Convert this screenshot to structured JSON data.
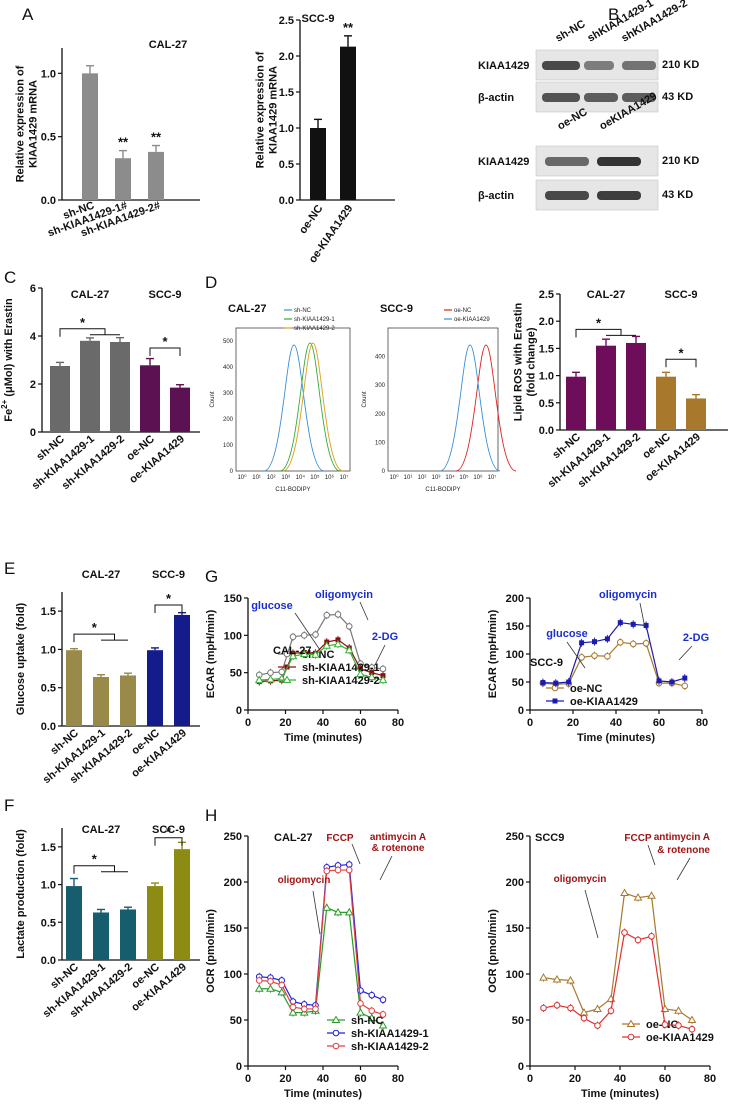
{
  "panels": {
    "A": {
      "label": "A"
    },
    "B": {
      "label": "B"
    },
    "C": {
      "label": "C"
    },
    "D": {
      "label": "D"
    },
    "E": {
      "label": "E"
    },
    "F": {
      "label": "F"
    },
    "G": {
      "label": "G"
    },
    "H": {
      "label": "H"
    }
  },
  "colors": {
    "gray": "#8c8c8c",
    "black": "#111111",
    "darkgray": "#6a6a6a",
    "purple": "#5c1152",
    "magenta": "#6e0e5a",
    "gold": "#a8782c",
    "olivegold": "#9a8a4a",
    "navy": "#141c8c",
    "teal": "#165e6e",
    "olive": "#8c8c14",
    "blue_ann": "#1b2fd0",
    "red_ann": "#a01414"
  },
  "chart_data": [
    {
      "id": "A-left",
      "type": "bar",
      "title": "CAL-27",
      "ylabel": "Relative expression of KIAA1429 mRNA",
      "ylim": [
        0,
        1.2
      ],
      "yticks": [
        "0.0",
        "0.5",
        "1.0"
      ],
      "categories": [
        "sh-NC",
        "sh-KIAA1429-1#",
        "sh-KIAA1429-2#"
      ],
      "values": [
        1.0,
        0.33,
        0.38
      ],
      "errors": [
        0.06,
        0.06,
        0.05
      ],
      "colors": [
        "#8c8c8c",
        "#8c8c8c",
        "#8c8c8c"
      ],
      "annotations": [
        "",
        "**",
        "**"
      ]
    },
    {
      "id": "A-right",
      "type": "bar",
      "title": "SCC-9",
      "ylabel": "Relative expression of KIAA1429 mRNA",
      "ylim": [
        0,
        2.5
      ],
      "yticks": [
        "0.0",
        "0.5",
        "1.0",
        "1.5",
        "2.0",
        "2.5"
      ],
      "categories": [
        "oe-NC",
        "oe-KIAA1429"
      ],
      "values": [
        1.0,
        2.13
      ],
      "errors": [
        0.12,
        0.15
      ],
      "colors": [
        "#111111",
        "#111111"
      ],
      "annotations": [
        "",
        "**"
      ]
    },
    {
      "id": "C",
      "type": "bar",
      "ylabel": "Fe2+ (μMol) with Erastin",
      "ylim": [
        0,
        6
      ],
      "yticks": [
        "0",
        "2",
        "4",
        "6"
      ],
      "group_titles": [
        "CAL-27",
        "SCC-9"
      ],
      "categories": [
        "sh-NC",
        "sh-KIAA1429-1",
        "sh-KIAA1429-2",
        "oe-NC",
        "oe-KIAA1429"
      ],
      "values": [
        2.75,
        3.8,
        3.75,
        2.78,
        1.85
      ],
      "errors": [
        0.15,
        0.12,
        0.18,
        0.28,
        0.12
      ],
      "colors": [
        "#6a6a6a",
        "#6a6a6a",
        "#6a6a6a",
        "#5c1152",
        "#5c1152"
      ],
      "significance": [
        "*",
        "*"
      ]
    },
    {
      "id": "D-flow",
      "type": "line",
      "xlabel": "C11-BODIPY",
      "ylabel": "Count",
      "histograms": [
        {
          "title": "CAL-27",
          "yticks": [
            "0",
            "100",
            "200",
            "300",
            "400",
            "500"
          ],
          "xticks": [
            "10⁰",
            "10¹",
            "10²",
            "10³",
            "10⁴",
            "10⁵",
            "10⁶",
            "10⁷"
          ],
          "legend": [
            "sh-NC",
            "sh-KIAA1429-1",
            "sh-KIAA1429-2"
          ],
          "series_colors": [
            "#3a8fd6",
            "#3aa83a",
            "#d8a01a"
          ]
        },
        {
          "title": "SCC-9",
          "yticks": [
            "0",
            "100",
            "200",
            "300",
            "400"
          ],
          "xticks": [
            "10⁰",
            "10¹",
            "10²",
            "10³",
            "10⁴",
            "10⁵",
            "10⁶",
            "10⁷"
          ],
          "legend": [
            "oe-NC",
            "oe-KIAA1429"
          ],
          "series_colors": [
            "#e02020",
            "#3a8fd6"
          ]
        }
      ]
    },
    {
      "id": "D-bar",
      "type": "bar",
      "ylabel": "Lipid ROS with Erastin (fold change)",
      "ylim": [
        0,
        2.5
      ],
      "yticks": [
        "0.0",
        "0.5",
        "1.0",
        "1.5",
        "2.0",
        "2.5"
      ],
      "group_titles": [
        "CAL-27",
        "SCC-9"
      ],
      "categories": [
        "sh-NC",
        "sh-KIAA1429-1",
        "sh-KIAA1429-2",
        "oe-NC",
        "oe-KIAA1429"
      ],
      "values": [
        0.98,
        1.55,
        1.6,
        0.98,
        0.58
      ],
      "errors": [
        0.08,
        0.12,
        0.12,
        0.08,
        0.07
      ],
      "colors": [
        "#6e0e5a",
        "#6e0e5a",
        "#6e0e5a",
        "#a8782c",
        "#a8782c"
      ],
      "significance": [
        "*",
        "*"
      ]
    },
    {
      "id": "E",
      "type": "bar",
      "ylabel": "Glucose uptake (fold)",
      "ylim": [
        0,
        1.75
      ],
      "yticks": [
        "0.0",
        "0.5",
        "1.0",
        "1.5"
      ],
      "group_titles": [
        "CAL-27",
        "SCC-9"
      ],
      "categories": [
        "sh-NC",
        "sh-KIAA1429-1",
        "sh-KIAA1429-2",
        "oe-NC",
        "oe-KIAA1429"
      ],
      "values": [
        0.99,
        0.64,
        0.66,
        0.99,
        1.45
      ],
      "errors": [
        0.02,
        0.03,
        0.03,
        0.03,
        0.03
      ],
      "colors": [
        "#9a8a4a",
        "#9a8a4a",
        "#9a8a4a",
        "#141c8c",
        "#141c8c"
      ],
      "significance": [
        "*",
        "*"
      ]
    },
    {
      "id": "F",
      "type": "bar",
      "ylabel": "Lactate production (fold)",
      "ylim": [
        0,
        1.75
      ],
      "yticks": [
        "0.0",
        "0.5",
        "1.0",
        "1.5"
      ],
      "group_titles": [
        "CAL-27",
        "SCC-9"
      ],
      "categories": [
        "sh-NC",
        "sh-KIAA1429-1",
        "sh-KIAA1429-2",
        "oe-NC",
        "oe-KIAA1429"
      ],
      "values": [
        0.98,
        0.63,
        0.67,
        0.98,
        1.47
      ],
      "errors": [
        0.1,
        0.04,
        0.03,
        0.04,
        0.09
      ],
      "colors": [
        "#165e6e",
        "#165e6e",
        "#165e6e",
        "#8c8c14",
        "#8c8c14"
      ],
      "significance": [
        "*",
        "*"
      ]
    },
    {
      "id": "G-left",
      "type": "line",
      "title": "CAL-27",
      "xlabel": "Time (minutes)",
      "ylabel": "ECAR (mpH/min)",
      "xlim": [
        0,
        80
      ],
      "ylim": [
        0,
        150
      ],
      "xticks": [
        "0",
        "20",
        "40",
        "60",
        "80"
      ],
      "yticks": [
        "0",
        "50",
        "100",
        "150"
      ],
      "x": [
        6,
        12,
        18,
        24,
        30,
        36,
        42,
        48,
        54,
        60,
        66,
        72
      ],
      "series": [
        {
          "name": "sh-NC",
          "color": "#777777",
          "marker": "o",
          "values": [
            47,
            50,
            51,
            98,
            100,
            101,
            127,
            128,
            112,
            62,
            57,
            55
          ]
        },
        {
          "name": "sh-KIAA1429-1",
          "color": "#8b1010",
          "marker": "s",
          "values": [
            38,
            39,
            40,
            76,
            77,
            76,
            91,
            94,
            83,
            55,
            50,
            46
          ]
        },
        {
          "name": "sh-KIAA1429-2",
          "color": "#3ab03a",
          "marker": "^",
          "values": [
            40,
            41,
            42,
            72,
            75,
            74,
            86,
            88,
            80,
            48,
            44,
            40
          ]
        }
      ],
      "annotations": [
        {
          "text": "glucose",
          "color": "#1b2fd0"
        },
        {
          "text": "oligomycin",
          "color": "#1b2fd0"
        },
        {
          "text": "2-DG",
          "color": "#1b2fd0"
        }
      ]
    },
    {
      "id": "G-right",
      "type": "line",
      "title": "SCC-9",
      "xlabel": "Time (minutes)",
      "ylabel": "ECAR (mpH/min)",
      "xlim": [
        0,
        80
      ],
      "ylim": [
        0,
        200
      ],
      "xticks": [
        "0",
        "20",
        "40",
        "60",
        "80"
      ],
      "yticks": [
        "0",
        "50",
        "100",
        "150",
        "200"
      ],
      "x": [
        6,
        12,
        18,
        24,
        30,
        36,
        42,
        48,
        54,
        60,
        66,
        72
      ],
      "series": [
        {
          "name": "oe-NC",
          "color": "#a8782c",
          "marker": "o",
          "values": [
            48,
            46,
            47,
            94,
            97,
            96,
            121,
            118,
            119,
            48,
            48,
            43
          ]
        },
        {
          "name": "oe-KIAA1429",
          "color": "#1b1bb0",
          "marker": "s",
          "values": [
            49,
            48,
            50,
            120,
            122,
            127,
            156,
            153,
            151,
            52,
            50,
            57
          ]
        }
      ],
      "annotations": [
        {
          "text": "glucose",
          "color": "#1b2fd0"
        },
        {
          "text": "oligomycin",
          "color": "#1b2fd0"
        },
        {
          "text": "2-DG",
          "color": "#1b2fd0"
        }
      ]
    },
    {
      "id": "H-left",
      "type": "line",
      "title": "CAL-27",
      "xlabel": "Time (minutes)",
      "ylabel": "OCR (pmol/min)",
      "xlim": [
        0,
        80
      ],
      "ylim": [
        0,
        250
      ],
      "xticks": [
        "0",
        "20",
        "40",
        "60",
        "80"
      ],
      "yticks": [
        "0",
        "50",
        "100",
        "150",
        "200",
        "250"
      ],
      "x": [
        6,
        12,
        18,
        24,
        30,
        36,
        42,
        48,
        54,
        60,
        66,
        72
      ],
      "series": [
        {
          "name": "sh-NC",
          "color": "#2a9a2a",
          "marker": "^",
          "values": [
            84,
            84,
            80,
            58,
            58,
            60,
            172,
            167,
            167,
            58,
            52,
            44
          ]
        },
        {
          "name": "sh-KIAA1429-1",
          "color": "#2020d8",
          "marker": "o",
          "values": [
            97,
            96,
            93,
            70,
            67,
            66,
            216,
            218,
            219,
            82,
            77,
            72
          ]
        },
        {
          "name": "sh-KIAA1429-2",
          "color": "#e04040",
          "marker": "o",
          "values": [
            93,
            92,
            88,
            64,
            62,
            62,
            212,
            213,
            213,
            68,
            60,
            56
          ]
        }
      ],
      "annotations": [
        {
          "text": "oligomycin",
          "color": "#a01414"
        },
        {
          "text": "FCCP",
          "color": "#a01414"
        },
        {
          "text": "antimycin A",
          "color": "#a01414"
        },
        {
          "text": "& rotenone",
          "color": "#a01414"
        }
      ]
    },
    {
      "id": "H-right",
      "type": "line",
      "title": "SCC9",
      "xlabel": "Time (minutes)",
      "ylabel": "OCR (pmol/min)",
      "xlim": [
        0,
        80
      ],
      "ylim": [
        0,
        250
      ],
      "xticks": [
        "0",
        "20",
        "40",
        "60",
        "80"
      ],
      "yticks": [
        "0",
        "50",
        "100",
        "150",
        "200",
        "250"
      ],
      "x": [
        6,
        12,
        18,
        24,
        30,
        36,
        42,
        48,
        54,
        60,
        66,
        72
      ],
      "series": [
        {
          "name": "oe-NC",
          "color": "#a8782c",
          "marker": "^",
          "values": [
            96,
            94,
            93,
            58,
            62,
            73,
            188,
            183,
            185,
            62,
            60,
            50
          ]
        },
        {
          "name": "oe-KIAA1429",
          "color": "#e03030",
          "marker": "o",
          "values": [
            63,
            66,
            63,
            52,
            44,
            60,
            145,
            137,
            141,
            45,
            44,
            40
          ]
        }
      ],
      "annotations": [
        {
          "text": "oligomycin",
          "color": "#a01414"
        },
        {
          "text": "FCCP",
          "color": "#a01414"
        },
        {
          "text": "antimycin A",
          "color": "#a01414"
        },
        {
          "text": "& rotenone",
          "color": "#a01414"
        }
      ]
    }
  ],
  "western_blot": {
    "top": {
      "lanes": [
        "sh-NC",
        "shKIAA1429-1",
        "shKIAA1429-2"
      ],
      "rows": [
        {
          "protein": "KIAA1429",
          "size": "210 KD"
        },
        {
          "protein": "β-actin",
          "size": "43 KD"
        }
      ]
    },
    "bottom": {
      "lanes": [
        "oe-NC",
        "oeKIAA1429"
      ],
      "rows": [
        {
          "protein": "KIAA1429",
          "size": "210 KD"
        },
        {
          "protein": "β-actin",
          "size": "43 KD"
        }
      ]
    }
  },
  "sig_marks": {
    "one": "*",
    "two": "**"
  }
}
